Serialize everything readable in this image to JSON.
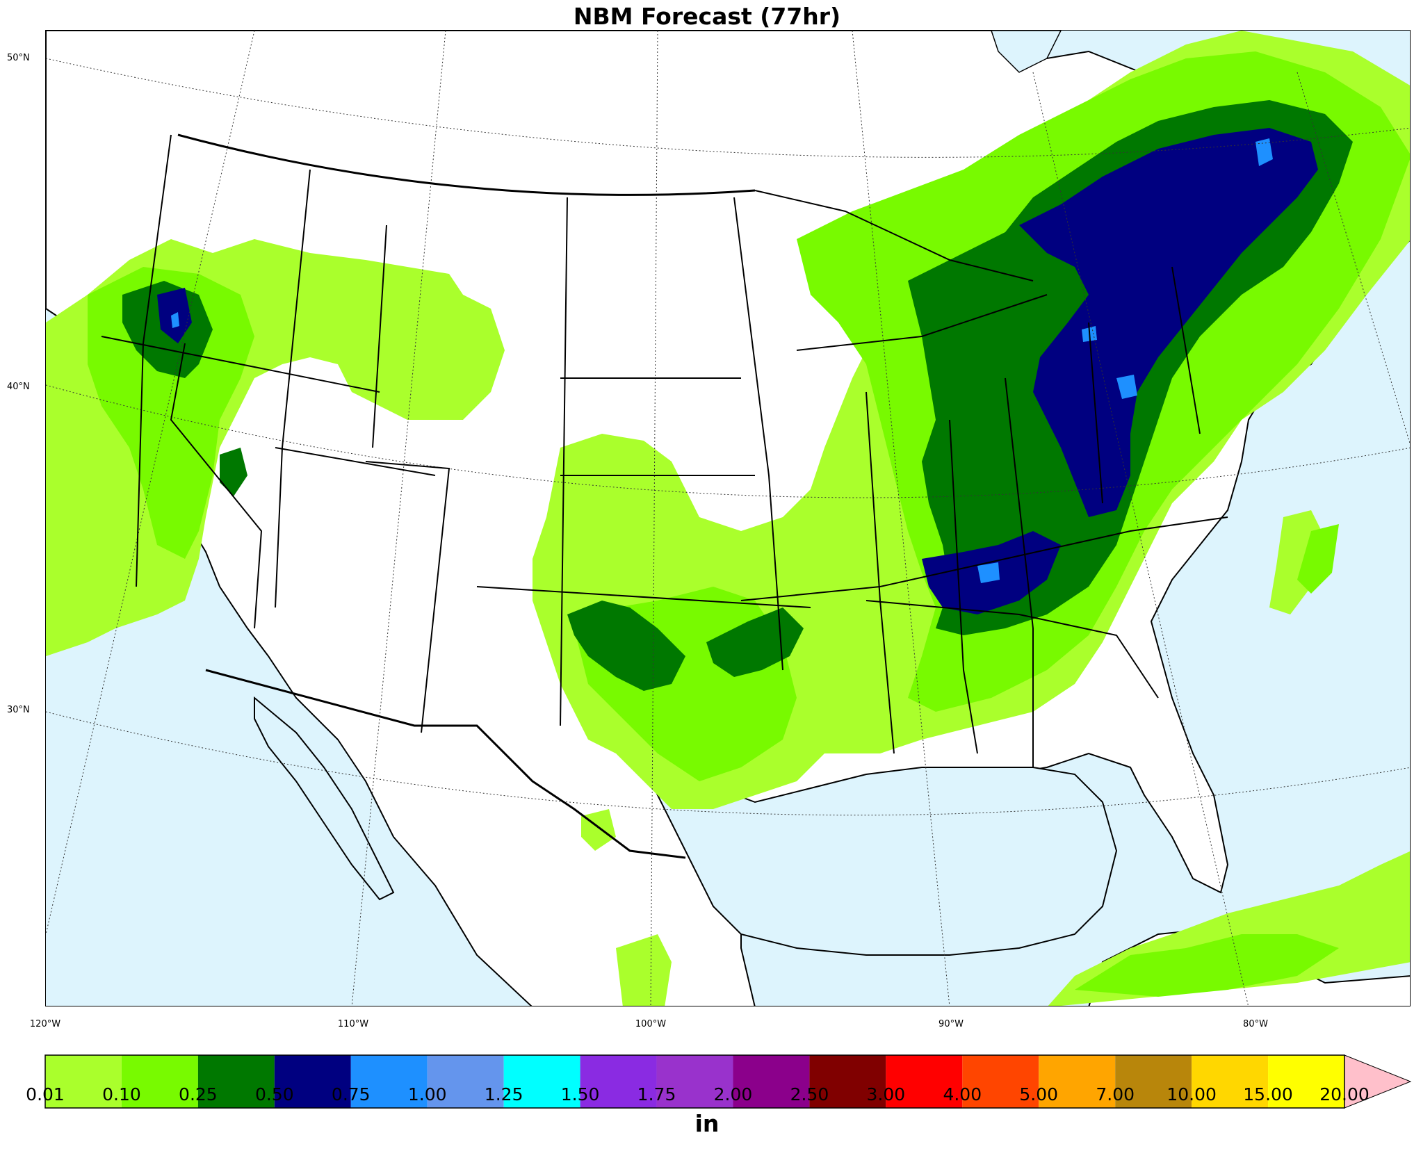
{
  "title": "NBM Forecast (77hr)",
  "map": {
    "ocean_color": "#ddf4fd",
    "land_color": "#ffffff",
    "latitude_labels": [
      "50°N",
      "40°N",
      "30°N"
    ],
    "longitude_labels": [
      "120°W",
      "110°W",
      "100°W",
      "90°W",
      "80°W"
    ]
  },
  "colorbar": {
    "units": "in",
    "boundaries": [
      "0.01",
      "0.10",
      "0.25",
      "0.50",
      "0.75",
      "1.00",
      "1.25",
      "1.50",
      "1.75",
      "2.00",
      "2.50",
      "3.00",
      "4.00",
      "5.00",
      "7.00",
      "10.00",
      "15.00",
      "20.00"
    ],
    "colors": [
      "#aaff2c",
      "#78fa00",
      "#007800",
      "#000080",
      "#1e90ff",
      "#6495ed",
      "#00ffff",
      "#8a2be2",
      "#9932cc",
      "#8b008b",
      "#800000",
      "#ff0000",
      "#ff4500",
      "#ffa500",
      "#b8860b",
      "#ffd700",
      "#ffff00"
    ],
    "extend_color": "#ffc0cb"
  }
}
